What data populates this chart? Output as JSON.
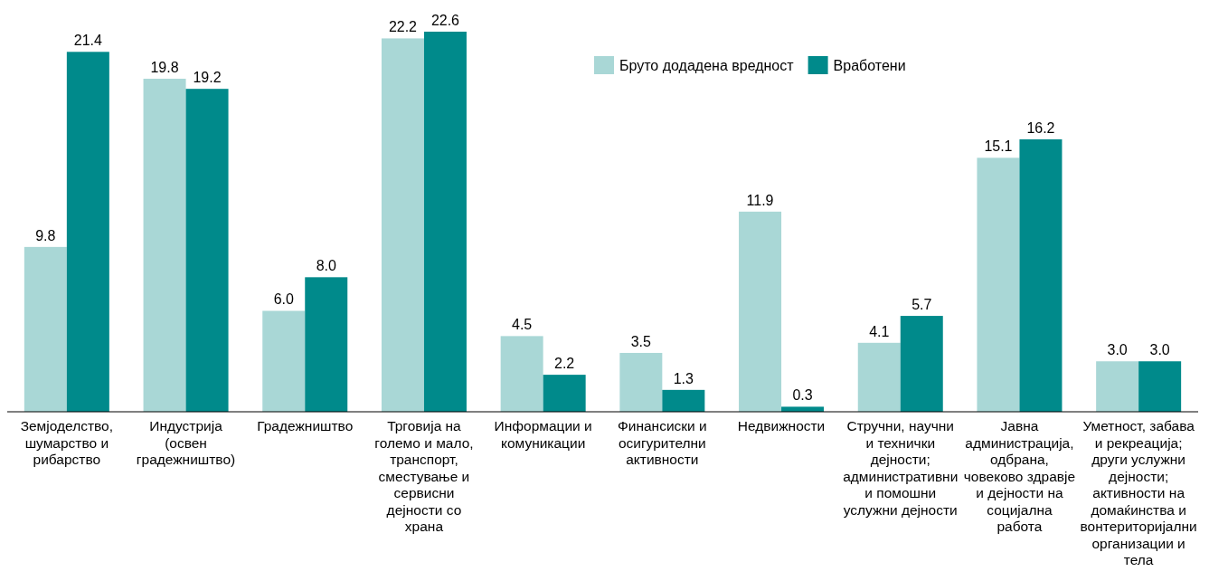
{
  "chart_data": {
    "type": "bar",
    "categories": [
      "Земјоделство, шумарство и рибарство",
      "Индустрија (освен градежништво)",
      "Градежништво",
      "Трговија на големо и мало, транспорт, сместување и сервисни дејности со храна",
      "Информации и комуникации",
      "Финансиски и осигурителни активности",
      "Недвижности",
      "Стручни, научни и технички дејности; административни и помошни услужни дејности",
      "Јавна администрација, одбрана, човеково здравје и дејности на социјална работа",
      "Уметност, забава и рекреација; други услужни дејности; активности на домаќинства и вонтериторијални организации и тела"
    ],
    "series": [
      {
        "name": "Бруто додадена вредност",
        "color": "#a9d7d6",
        "values": [
          9.8,
          19.8,
          6.0,
          22.2,
          4.5,
          3.5,
          11.9,
          4.1,
          15.1,
          3.0
        ],
        "value_labels": [
          "9.8",
          "19.8",
          "6.0",
          "22.2",
          "4.5",
          "3.5",
          "11.9",
          "4.1",
          "15.1",
          "3.0"
        ]
      },
      {
        "name": "Вработени",
        "color": "#008a8b",
        "values": [
          21.4,
          19.2,
          8.0,
          22.6,
          2.2,
          1.3,
          0.3,
          5.7,
          16.2,
          3.0
        ],
        "value_labels": [
          "21.4",
          "19.2",
          "8.0",
          "22.6",
          "2.2",
          "1.3",
          "0.3",
          "5.7",
          "16.2",
          "3.0"
        ]
      }
    ],
    "legend": "top right"
  }
}
